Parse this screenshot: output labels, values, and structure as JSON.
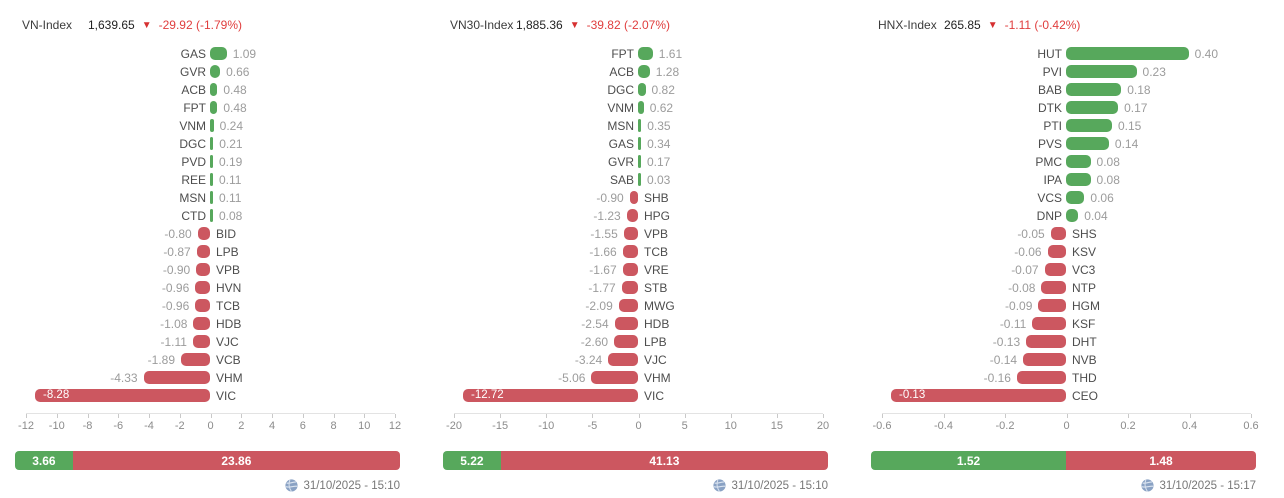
{
  "colors": {
    "positive_bar": "#57a85c",
    "negative_bar": "#cc5760",
    "change_text": "#e03e3e",
    "arrow": "#d63031",
    "ticker_text": "#4d4d4d",
    "value_text": "#9c9c9c",
    "axis_text": "#8b8b8b",
    "timestamp_text": "#777777"
  },
  "chart_data": [
    {
      "type": "bar",
      "orientation": "horizontal",
      "header": {
        "name": "VN-Index",
        "value": "1,639.65",
        "direction_icon": "▼",
        "change": "-29.92 (-1.79%)"
      },
      "categories": [
        "GAS",
        "GVR",
        "ACB",
        "FPT",
        "VNM",
        "DGC",
        "PVD",
        "REE",
        "MSN",
        "CTD",
        "BID",
        "LPB",
        "VPB",
        "HVN",
        "TCB",
        "HDB",
        "VJC",
        "VCB",
        "VHM",
        "VIC"
      ],
      "values": [
        1.09,
        0.66,
        0.48,
        0.48,
        0.24,
        0.21,
        0.19,
        0.11,
        0.11,
        0.08,
        -0.8,
        -0.87,
        -0.9,
        -0.96,
        -0.96,
        -1.08,
        -1.11,
        -1.89,
        -4.33,
        -8.28
      ],
      "xlim": [
        -12,
        12
      ],
      "xstep": 2,
      "grid": false,
      "last_bar_full_width": true,
      "summary": {
        "advancing": 3.66,
        "declining": 23.86
      },
      "timestamp": "31/10/2025 - 15:10"
    },
    {
      "type": "bar",
      "orientation": "horizontal",
      "header": {
        "name": "VN30-Index",
        "value": "1,885.36",
        "direction_icon": "▼",
        "change": "-39.82 (-2.07%)"
      },
      "categories": [
        "FPT",
        "ACB",
        "DGC",
        "VNM",
        "MSN",
        "GAS",
        "GVR",
        "SAB",
        "SHB",
        "HPG",
        "VPB",
        "TCB",
        "VRE",
        "STB",
        "MWG",
        "HDB",
        "LPB",
        "VJC",
        "VHM",
        "VIC"
      ],
      "values": [
        1.61,
        1.28,
        0.82,
        0.62,
        0.35,
        0.34,
        0.17,
        0.03,
        -0.9,
        -1.23,
        -1.55,
        -1.66,
        -1.67,
        -1.77,
        -2.09,
        -2.54,
        -2.6,
        -3.24,
        -5.06,
        -12.72
      ],
      "xlim": [
        -20,
        20
      ],
      "xstep": 5,
      "grid": false,
      "last_bar_full_width": true,
      "summary": {
        "advancing": 5.22,
        "declining": 41.13
      },
      "timestamp": "31/10/2025 - 15:10"
    },
    {
      "type": "bar",
      "orientation": "horizontal",
      "header": {
        "name": "HNX-Index",
        "value": "265.85",
        "direction_icon": "▼",
        "change": "-1.11 (-0.42%)"
      },
      "categories": [
        "HUT",
        "PVI",
        "BAB",
        "DTK",
        "PTI",
        "PVS",
        "PMC",
        "IPA",
        "VCS",
        "DNP",
        "SHS",
        "KSV",
        "VC3",
        "NTP",
        "HGM",
        "KSF",
        "DHT",
        "NVB",
        "THD",
        "CEO"
      ],
      "values": [
        0.4,
        0.23,
        0.18,
        0.17,
        0.15,
        0.14,
        0.08,
        0.08,
        0.06,
        0.04,
        -0.05,
        -0.06,
        -0.07,
        -0.08,
        -0.09,
        -0.11,
        -0.13,
        -0.14,
        -0.16,
        -0.13
      ],
      "xlim": [
        -0.6,
        0.6
      ],
      "xstep": 0.2,
      "grid": false,
      "last_bar_full_width": true,
      "summary": {
        "advancing": 1.52,
        "declining": 1.48
      },
      "timestamp": "31/10/2025 - 15:17"
    }
  ]
}
